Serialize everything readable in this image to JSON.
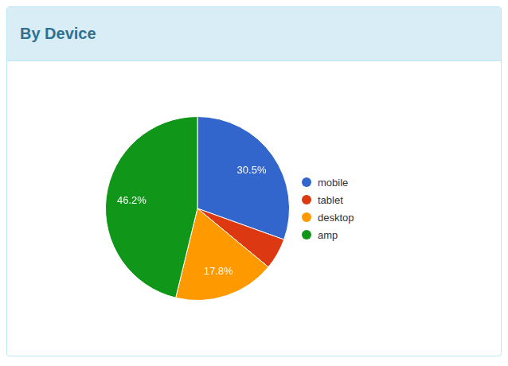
{
  "chart_data": {
    "type": "pie",
    "title": "By Device",
    "categories": [
      "mobile",
      "tablet",
      "desktop",
      "amp"
    ],
    "values": [
      30.5,
      5.5,
      17.8,
      46.2
    ],
    "colors": [
      "#3366cc",
      "#dc3912",
      "#ff9900",
      "#109618"
    ],
    "legend": "right",
    "data_labels": true,
    "value_labels": [
      "30.5%",
      null,
      "17.8%",
      "46.2%"
    ]
  }
}
